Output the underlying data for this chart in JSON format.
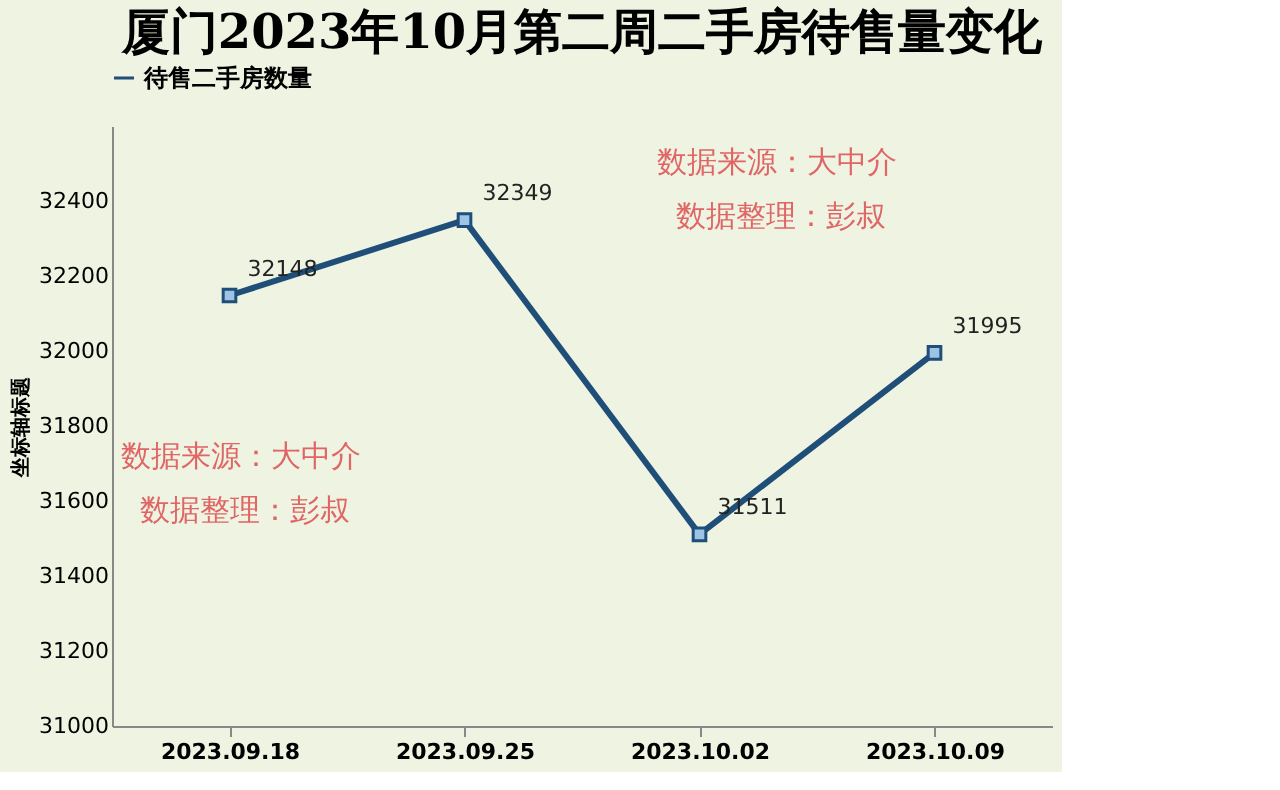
{
  "chart_data": {
    "type": "line",
    "title": "厦门2023年10月第二周二手房待售量变化",
    "ylabel": "坐标轴标题",
    "categories": [
      "2023.09.18",
      "2023.09.25",
      "2023.10.02",
      "2023.10.09"
    ],
    "series": [
      {
        "name": "待售二手房数量",
        "color": "#1f4e79",
        "values": [
          32148,
          32349,
          31511,
          31995
        ]
      }
    ],
    "ylim": [
      31000,
      32600
    ],
    "yticks": [
      31000,
      31200,
      31400,
      31600,
      31800,
      32000,
      32200,
      32400
    ],
    "data_labels": true,
    "marker": "square",
    "line_style": "solid",
    "grid": false,
    "legend": "top",
    "annotations": [
      "数据来源：大中介",
      "数据整理：彭叔",
      "数据来源：大中介",
      "数据整理：彭叔"
    ]
  }
}
